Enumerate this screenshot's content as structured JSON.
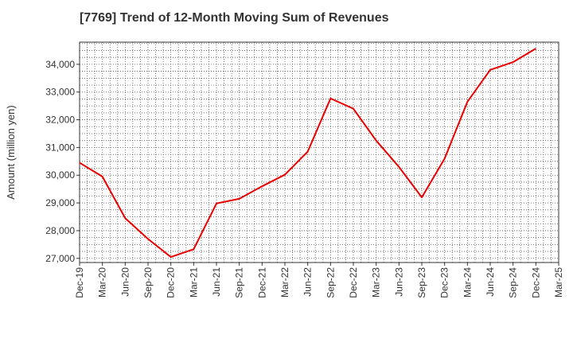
{
  "chart_data": {
    "type": "line",
    "title": "[7769]  Trend of 12-Month Moving Sum of Revenues",
    "xlabel": "",
    "ylabel": "Amount (million yen)",
    "categories": [
      "Dec-19",
      "Mar-20",
      "Jun-20",
      "Sep-20",
      "Dec-20",
      "Mar-21",
      "Jun-21",
      "Sep-21",
      "Dec-21",
      "Mar-22",
      "Jun-22",
      "Sep-22",
      "Dec-22",
      "Mar-23",
      "Jun-23",
      "Sep-23",
      "Dec-23",
      "Mar-24",
      "Jun-24",
      "Sep-24",
      "Dec-24",
      "Mar-25"
    ],
    "y_ticks": [
      27000,
      28000,
      29000,
      30000,
      31000,
      32000,
      33000,
      34000
    ],
    "y_tick_labels": [
      "27,000",
      "28,000",
      "29,000",
      "30,000",
      "31,000",
      "32,000",
      "33,000",
      "34,000"
    ],
    "ylim": [
      26850,
      34800
    ],
    "grid": true,
    "series": [
      {
        "color": "#e60000",
        "values": [
          30450,
          29950,
          28450,
          27700,
          27050,
          27330,
          28980,
          29150,
          29600,
          30020,
          30850,
          32770,
          32400,
          31250,
          30300,
          29200,
          30600,
          32650,
          33800,
          34080,
          34570,
          null
        ]
      }
    ]
  }
}
